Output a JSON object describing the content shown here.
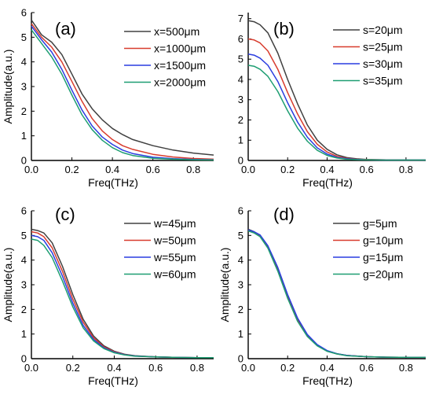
{
  "colors": {
    "series1": "#404040",
    "series2": "#d83c2e",
    "series3": "#2a3de0",
    "series4": "#1e9e72"
  },
  "chart_data": [
    {
      "type": "line",
      "panel_label": "(a)",
      "xlabel": "Freq(THz)",
      "ylabel": "Amplitude(a.u.)",
      "xlim": [
        0,
        0.9
      ],
      "ylim": [
        0,
        6
      ],
      "xticks": [
        "0.0",
        "0.2",
        "0.4",
        "0.6",
        "0.8"
      ],
      "yticks": [
        "0",
        "1",
        "2",
        "3",
        "4",
        "5",
        "6"
      ],
      "legend_position": "top-right",
      "series": [
        {
          "name": "x=500μm",
          "x": [
            0,
            0.05,
            0.1,
            0.15,
            0.2,
            0.25,
            0.3,
            0.35,
            0.4,
            0.45,
            0.5,
            0.6,
            0.7,
            0.8,
            0.9
          ],
          "values": [
            5.7,
            5.1,
            4.8,
            4.3,
            3.5,
            2.7,
            2.1,
            1.65,
            1.3,
            1.05,
            0.85,
            0.6,
            0.42,
            0.3,
            0.22
          ]
        },
        {
          "name": "x=1000μm",
          "x": [
            0,
            0.05,
            0.1,
            0.15,
            0.2,
            0.25,
            0.3,
            0.35,
            0.4,
            0.45,
            0.5,
            0.6,
            0.7,
            0.8,
            0.9
          ],
          "values": [
            5.55,
            5.0,
            4.6,
            4.0,
            3.2,
            2.4,
            1.7,
            1.2,
            0.85,
            0.6,
            0.45,
            0.25,
            0.14,
            0.08,
            0.05
          ]
        },
        {
          "name": "x=1500μm",
          "x": [
            0,
            0.05,
            0.1,
            0.15,
            0.2,
            0.25,
            0.3,
            0.35,
            0.4,
            0.45,
            0.5,
            0.6,
            0.7,
            0.8,
            0.9
          ],
          "values": [
            5.45,
            4.9,
            4.4,
            3.7,
            2.85,
            2.05,
            1.4,
            0.95,
            0.65,
            0.42,
            0.28,
            0.13,
            0.07,
            0.04,
            0.03
          ]
        },
        {
          "name": "x=2000μm",
          "x": [
            0,
            0.05,
            0.1,
            0.15,
            0.2,
            0.25,
            0.3,
            0.35,
            0.4,
            0.45,
            0.5,
            0.6,
            0.7,
            0.8,
            0.9
          ],
          "values": [
            5.3,
            4.75,
            4.2,
            3.5,
            2.65,
            1.85,
            1.25,
            0.82,
            0.52,
            0.32,
            0.2,
            0.09,
            0.05,
            0.03,
            0.02
          ]
        }
      ]
    },
    {
      "type": "line",
      "panel_label": "(b)",
      "xlabel": "Freq(THz)",
      "ylabel": "",
      "xlim": [
        0,
        0.9
      ],
      "ylim": [
        0,
        7.3
      ],
      "xticks": [
        "0.0",
        "0.2",
        "0.4",
        "0.6",
        "0.8"
      ],
      "yticks": [
        "0",
        "1",
        "2",
        "3",
        "4",
        "5",
        "6",
        "7"
      ],
      "legend_position": "top-right",
      "series": [
        {
          "name": "s=20μm",
          "x": [
            0,
            0.03,
            0.06,
            0.1,
            0.15,
            0.2,
            0.25,
            0.3,
            0.35,
            0.4,
            0.45,
            0.5,
            0.55,
            0.6,
            0.7,
            0.8,
            0.9
          ],
          "values": [
            6.9,
            6.85,
            6.7,
            6.3,
            5.3,
            4.0,
            2.8,
            1.75,
            1.0,
            0.55,
            0.28,
            0.14,
            0.08,
            0.05,
            0.03,
            0.02,
            0.02
          ]
        },
        {
          "name": "s=25μm",
          "x": [
            0,
            0.03,
            0.06,
            0.1,
            0.15,
            0.2,
            0.25,
            0.3,
            0.35,
            0.4,
            0.45,
            0.5,
            0.55,
            0.6,
            0.7,
            0.8,
            0.9
          ],
          "values": [
            6.0,
            5.95,
            5.8,
            5.4,
            4.5,
            3.35,
            2.3,
            1.42,
            0.8,
            0.42,
            0.2,
            0.1,
            0.06,
            0.04,
            0.03,
            0.02,
            0.02
          ]
        },
        {
          "name": "s=30μm",
          "x": [
            0,
            0.03,
            0.06,
            0.1,
            0.15,
            0.2,
            0.25,
            0.3,
            0.35,
            0.4,
            0.45,
            0.5,
            0.55,
            0.6,
            0.7,
            0.8,
            0.9
          ],
          "values": [
            5.25,
            5.2,
            5.05,
            4.7,
            3.9,
            2.85,
            1.9,
            1.15,
            0.62,
            0.32,
            0.15,
            0.08,
            0.05,
            0.03,
            0.02,
            0.02,
            0.02
          ]
        },
        {
          "name": "s=35μm",
          "x": [
            0,
            0.03,
            0.06,
            0.1,
            0.15,
            0.2,
            0.25,
            0.3,
            0.35,
            0.4,
            0.45,
            0.5,
            0.55,
            0.6,
            0.7,
            0.8,
            0.9
          ],
          "values": [
            4.7,
            4.65,
            4.5,
            4.15,
            3.4,
            2.45,
            1.6,
            0.95,
            0.5,
            0.25,
            0.12,
            0.06,
            0.04,
            0.03,
            0.02,
            0.02,
            0.02
          ]
        }
      ]
    },
    {
      "type": "line",
      "panel_label": "(c)",
      "xlabel": "Freq(THz)",
      "ylabel": "Amplitude(a.u.)",
      "xlim": [
        0,
        0.88
      ],
      "ylim": [
        0,
        6
      ],
      "xticks": [
        "0.0",
        "0.2",
        "0.4",
        "0.6",
        "0.8"
      ],
      "yticks": [
        "0",
        "1",
        "2",
        "3",
        "4",
        "5",
        "6"
      ],
      "legend_position": "top-right",
      "series": [
        {
          "name": "w=45μm",
          "x": [
            0,
            0.03,
            0.06,
            0.1,
            0.15,
            0.2,
            0.25,
            0.3,
            0.35,
            0.4,
            0.45,
            0.5,
            0.6,
            0.7,
            0.8,
            0.88
          ],
          "values": [
            5.25,
            5.2,
            5.1,
            4.7,
            3.75,
            2.6,
            1.6,
            0.92,
            0.52,
            0.3,
            0.18,
            0.12,
            0.07,
            0.05,
            0.04,
            0.04
          ]
        },
        {
          "name": "w=50μm",
          "x": [
            0,
            0.03,
            0.06,
            0.1,
            0.15,
            0.2,
            0.25,
            0.3,
            0.35,
            0.4,
            0.45,
            0.5,
            0.6,
            0.7,
            0.8,
            0.88
          ],
          "values": [
            5.15,
            5.1,
            4.95,
            4.5,
            3.55,
            2.42,
            1.48,
            0.85,
            0.48,
            0.28,
            0.17,
            0.11,
            0.07,
            0.05,
            0.04,
            0.04
          ]
        },
        {
          "name": "w=55μm",
          "x": [
            0,
            0.03,
            0.06,
            0.1,
            0.15,
            0.2,
            0.25,
            0.3,
            0.35,
            0.4,
            0.45,
            0.5,
            0.6,
            0.7,
            0.8,
            0.88
          ],
          "values": [
            5.0,
            4.95,
            4.8,
            4.3,
            3.35,
            2.25,
            1.35,
            0.78,
            0.44,
            0.26,
            0.16,
            0.11,
            0.07,
            0.05,
            0.04,
            0.04
          ]
        },
        {
          "name": "w=60μm",
          "x": [
            0,
            0.03,
            0.06,
            0.1,
            0.15,
            0.2,
            0.25,
            0.3,
            0.35,
            0.4,
            0.45,
            0.5,
            0.6,
            0.7,
            0.8,
            0.88
          ],
          "values": [
            4.85,
            4.8,
            4.6,
            4.1,
            3.15,
            2.1,
            1.25,
            0.72,
            0.41,
            0.24,
            0.15,
            0.1,
            0.07,
            0.05,
            0.04,
            0.04
          ]
        }
      ]
    },
    {
      "type": "line",
      "panel_label": "(d)",
      "xlabel": "Freq(THz)",
      "ylabel": "Amplitude(a.u.)",
      "xlim": [
        0,
        0.9
      ],
      "ylim": [
        0,
        6
      ],
      "xticks": [
        "0.0",
        "0.2",
        "0.4",
        "0.6",
        "0.8"
      ],
      "yticks": [
        "0",
        "1",
        "2",
        "3",
        "4",
        "5",
        "6"
      ],
      "legend_position": "top-right",
      "series": [
        {
          "name": "g=5μm",
          "x": [
            0,
            0.03,
            0.06,
            0.1,
            0.15,
            0.2,
            0.25,
            0.3,
            0.35,
            0.4,
            0.45,
            0.5,
            0.6,
            0.7,
            0.8,
            0.9
          ],
          "values": [
            5.25,
            5.15,
            5.0,
            4.55,
            3.65,
            2.55,
            1.6,
            0.95,
            0.55,
            0.32,
            0.2,
            0.13,
            0.08,
            0.06,
            0.05,
            0.05
          ]
        },
        {
          "name": "g=10μm",
          "x": [
            0,
            0.03,
            0.06,
            0.1,
            0.15,
            0.2,
            0.25,
            0.3,
            0.35,
            0.4,
            0.45,
            0.5,
            0.6,
            0.7,
            0.8,
            0.9
          ],
          "values": [
            5.2,
            5.12,
            4.98,
            4.5,
            3.58,
            2.48,
            1.55,
            0.92,
            0.53,
            0.31,
            0.19,
            0.13,
            0.08,
            0.06,
            0.05,
            0.05
          ]
        },
        {
          "name": "g=15μm",
          "x": [
            0,
            0.03,
            0.06,
            0.1,
            0.15,
            0.2,
            0.25,
            0.3,
            0.35,
            0.4,
            0.45,
            0.5,
            0.6,
            0.7,
            0.8,
            0.9
          ],
          "values": [
            5.22,
            5.15,
            5.02,
            4.58,
            3.7,
            2.6,
            1.65,
            0.98,
            0.57,
            0.33,
            0.2,
            0.13,
            0.08,
            0.06,
            0.05,
            0.05
          ]
        },
        {
          "name": "g=20μm",
          "x": [
            0,
            0.03,
            0.06,
            0.1,
            0.15,
            0.2,
            0.25,
            0.3,
            0.35,
            0.4,
            0.45,
            0.5,
            0.6,
            0.7,
            0.8,
            0.9
          ],
          "values": [
            5.18,
            5.1,
            4.95,
            4.48,
            3.55,
            2.45,
            1.52,
            0.9,
            0.52,
            0.3,
            0.19,
            0.12,
            0.08,
            0.06,
            0.05,
            0.05
          ]
        }
      ]
    }
  ]
}
